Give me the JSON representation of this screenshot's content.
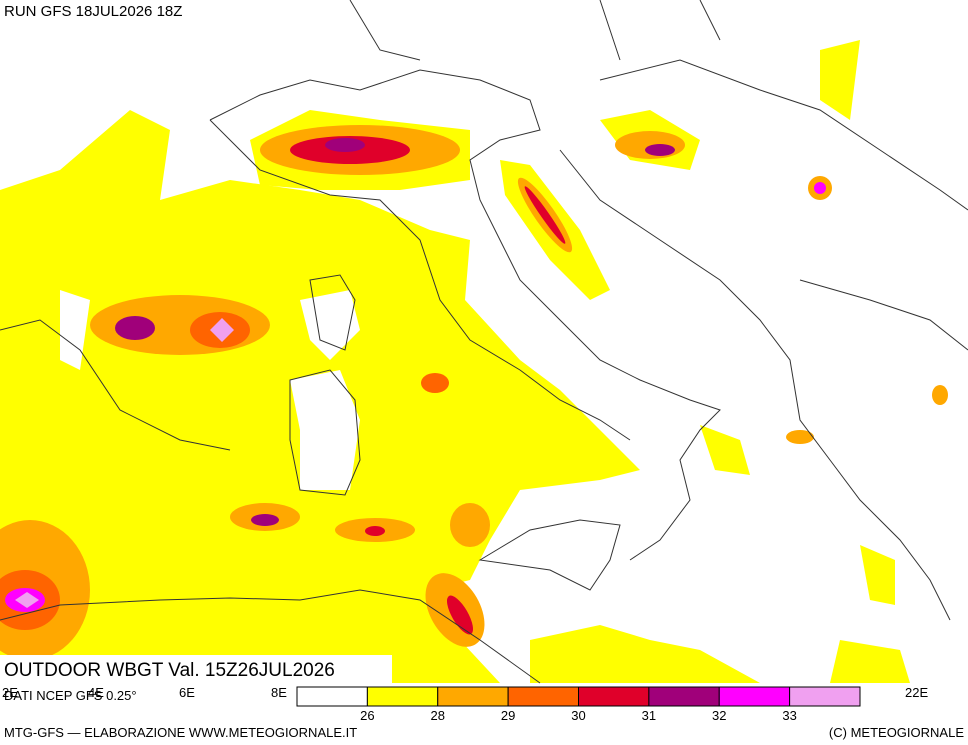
{
  "header": {
    "run": "RUN GFS 18JUL2026 18Z"
  },
  "map": {
    "title": "OUTDOOR WBGT Val. 15Z26JUL2026",
    "source": "DATI NCEP GFS 0.25°",
    "longitude_labels": [
      "2E",
      "4E",
      "6E",
      "8E",
      "22E"
    ]
  },
  "legend": {
    "colors": [
      "#ffffff",
      "#ffff00",
      "#ffa800",
      "#ff6400",
      "#e0002a",
      "#a0007a",
      "#ff00ff",
      "#f0a0f0"
    ],
    "ticks": [
      26,
      28,
      29,
      30,
      31,
      32,
      33
    ]
  },
  "footer": {
    "left": "MTG-GFS — ELABORAZIONE WWW.METEOGIORNALE.IT",
    "right": "(C) METEOGIORNALE"
  }
}
